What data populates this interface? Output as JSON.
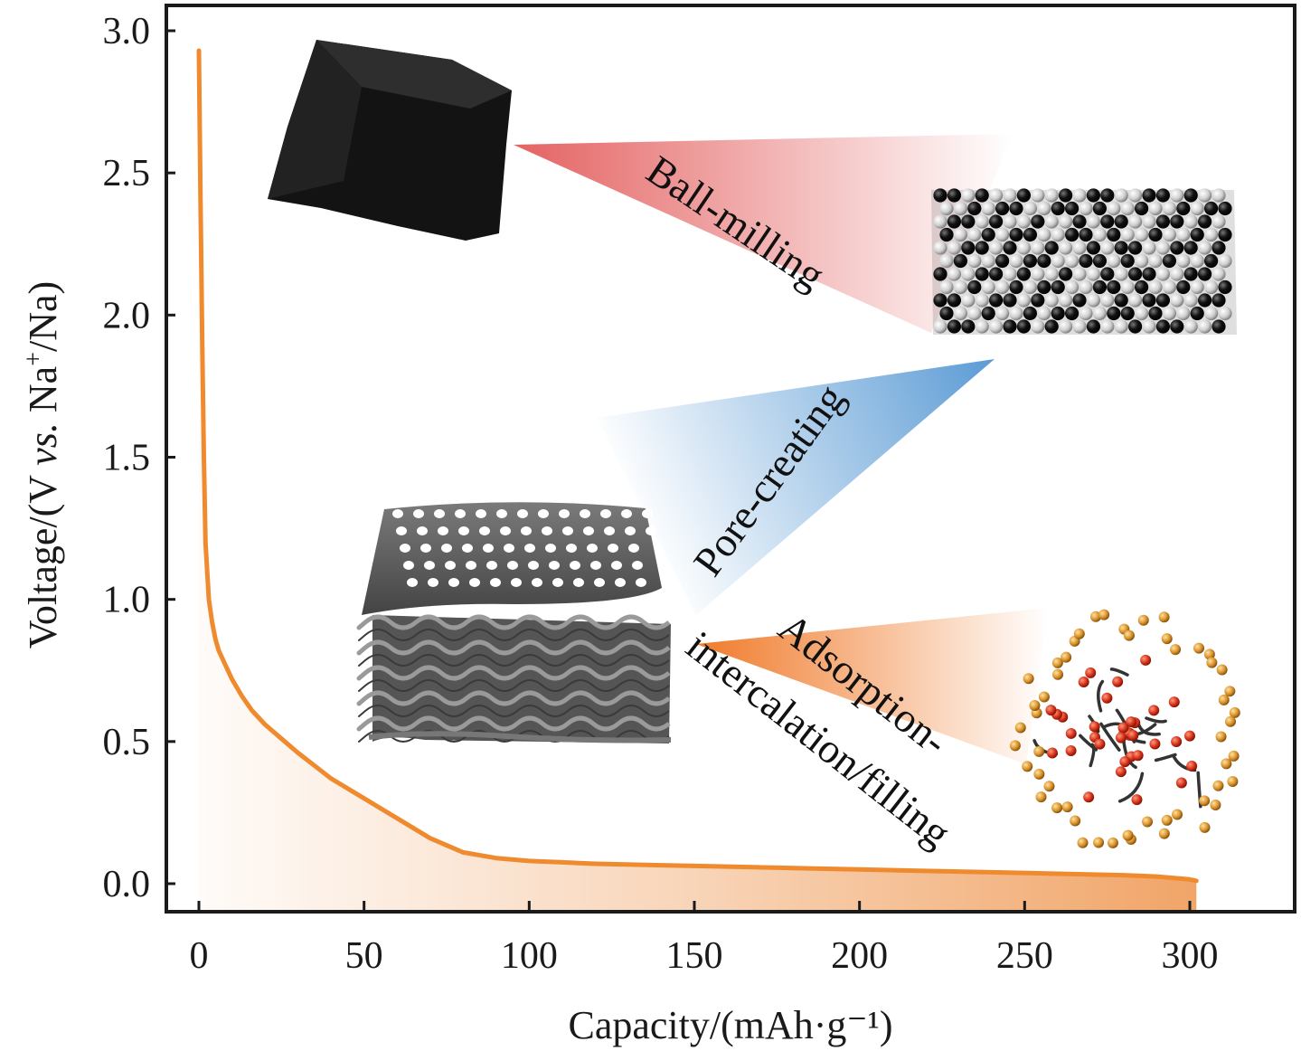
{
  "chart_data": {
    "type": "line",
    "xlabel": "Capacity/(mAh·g⁻¹)",
    "ylabel_parts": [
      "Voltage/(V ",
      "vs.",
      " Na",
      "+",
      "/Na)"
    ],
    "xlim": [
      -10,
      335
    ],
    "ylim": [
      -0.1,
      3.1
    ],
    "x_ticks": [
      "0",
      "50",
      "100",
      "150",
      "200",
      "250",
      "300"
    ],
    "y_ticks": [
      "0.0",
      "0.5",
      "1.0",
      "1.5",
      "2.0",
      "2.5",
      "3.0"
    ],
    "grid": false,
    "series": [
      {
        "color": "#ef8a2e",
        "x": [
          0,
          0.5,
          1,
          1.5,
          2,
          3,
          4,
          5,
          6,
          8,
          10,
          13,
          16,
          20,
          25,
          30,
          40,
          50,
          60,
          70,
          80,
          90,
          100,
          110,
          120,
          140,
          160,
          180,
          200,
          220,
          240,
          260,
          280,
          290,
          300,
          302
        ],
        "y": [
          2.93,
          2.4,
          1.9,
          1.5,
          1.2,
          1.0,
          0.92,
          0.86,
          0.82,
          0.77,
          0.72,
          0.66,
          0.61,
          0.56,
          0.51,
          0.46,
          0.37,
          0.3,
          0.23,
          0.16,
          0.11,
          0.09,
          0.08,
          0.075,
          0.07,
          0.065,
          0.06,
          0.055,
          0.05,
          0.045,
          0.04,
          0.035,
          0.03,
          0.025,
          0.015,
          0.01
        ]
      }
    ],
    "annotations": [
      "Ball-milling",
      "Pore-creating",
      "Adsorption-",
      "intercalation/filling"
    ]
  },
  "colors": {
    "curve": "#ef8a2e",
    "fill": "#f0a060",
    "ball_milling_wedge": "#e35a5a",
    "pore_creating_wedge": "#5b9bd5",
    "adsorption_wedge": "#f07a2a"
  },
  "icons": [
    "hard-carbon-block-icon",
    "graphitic-sphere-lattice-icon",
    "porous-layered-carbon-icon",
    "sodium-cluster-icon"
  ]
}
